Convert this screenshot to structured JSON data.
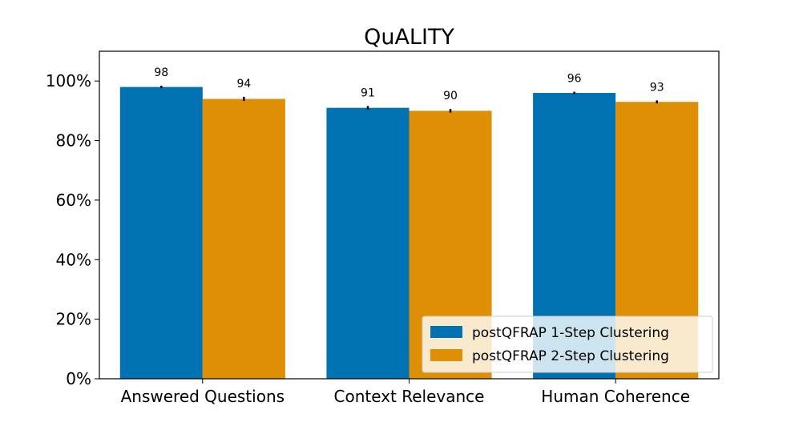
{
  "chart_data": {
    "type": "bar",
    "title": "QuALITY",
    "xlabel": "",
    "ylabel": "",
    "categories": [
      "Answered Questions",
      "Context Relevance",
      "Human Coherence"
    ],
    "series": [
      {
        "name": "postQFRAP 1-Step Clustering",
        "values": [
          98,
          91,
          96
        ],
        "error": [
          0.4,
          0.6,
          0.4
        ],
        "color": "#0072b2"
      },
      {
        "name": "postQFRAP 2-Step Clustering",
        "values": [
          94,
          90,
          93
        ],
        "error": [
          0.7,
          0.6,
          0.5
        ],
        "color": "#de8f05"
      }
    ],
    "data_labels": [
      [
        "98",
        "91",
        "96"
      ],
      [
        "94",
        "90",
        "93"
      ]
    ],
    "ylim": [
      0,
      110
    ],
    "yticks": [
      0,
      20,
      40,
      60,
      80,
      100
    ],
    "ytick_labels": [
      "0%",
      "20%",
      "40%",
      "60%",
      "80%",
      "100%"
    ],
    "grid": false,
    "legend_position": "lower-right"
  }
}
